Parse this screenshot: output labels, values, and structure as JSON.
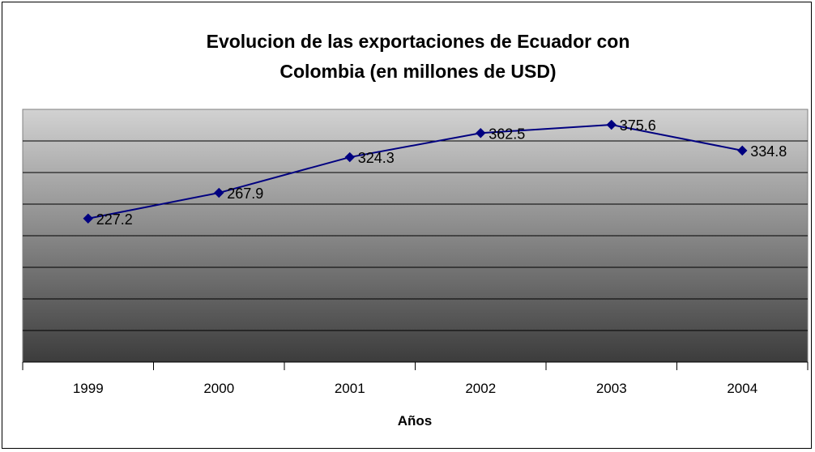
{
  "chart_data": {
    "type": "line",
    "title": "Evolucion de las exportaciones de Ecuador con Colombia (en millones de USD)",
    "title_lines": [
      "Evolucion de las exportaciones de Ecuador con",
      "Colombia (en millones de USD)"
    ],
    "xlabel": "Años",
    "ylabel": "",
    "categories": [
      "1999",
      "2000",
      "2001",
      "2002",
      "2003",
      "2004"
    ],
    "series": [
      {
        "values": [
          227.2,
          267.9,
          324.3,
          362.5,
          375.6,
          334.8
        ],
        "color": "#000080",
        "marker": "diamond"
      }
    ],
    "data_labels": [
      "227.2",
      "267.9",
      "324.3",
      "362.5",
      "375.6",
      "334.8"
    ],
    "ylim": [
      0,
      400
    ],
    "y_tick_step": 50,
    "y_tick_labels_shown": false,
    "grid": true,
    "legend": "none",
    "plot_background": "gradient light gray to dark gray",
    "colors": {
      "line": "#000080",
      "grid": "#000000",
      "plot_top": "#d2d2d2",
      "plot_bottom": "#3c3c3c"
    }
  }
}
